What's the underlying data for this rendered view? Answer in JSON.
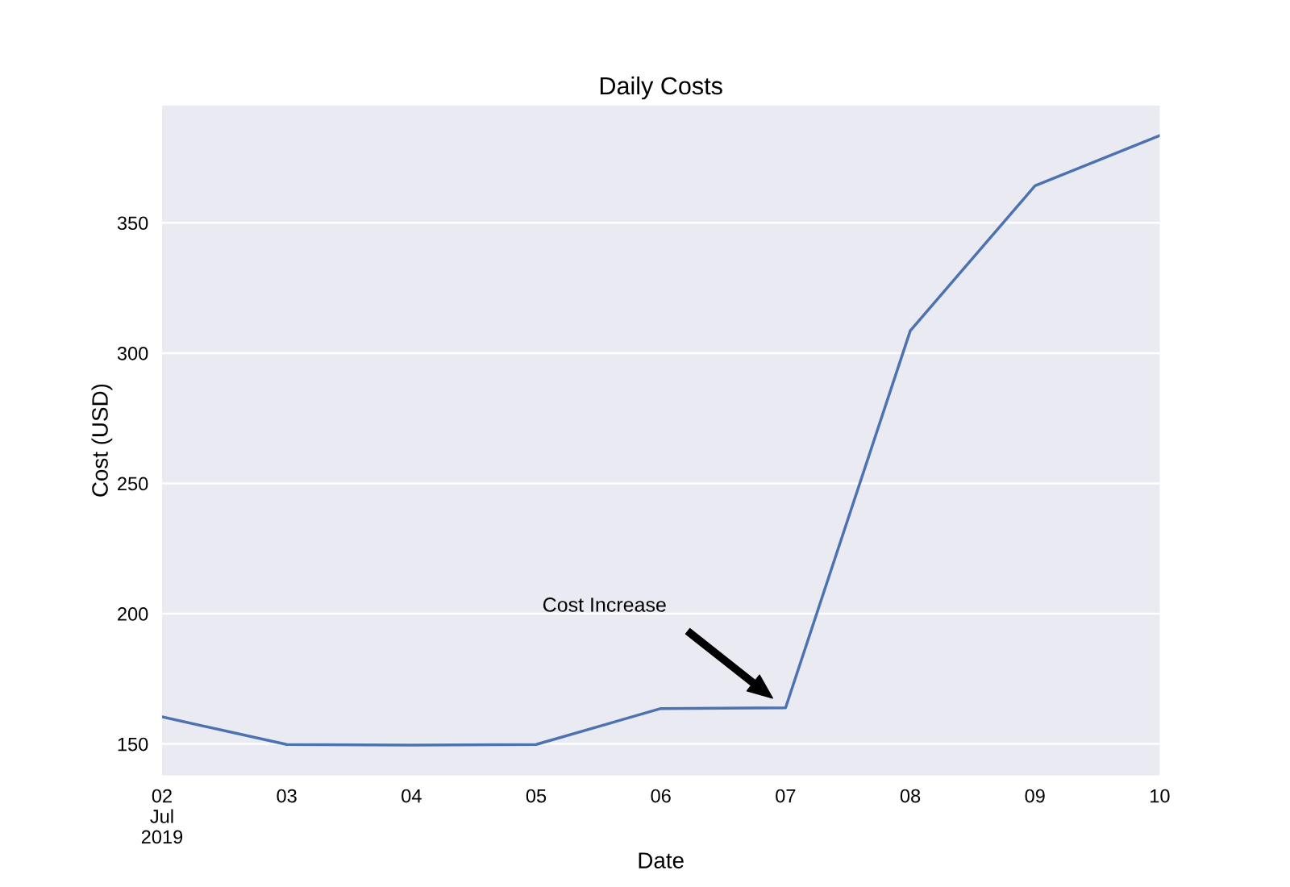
{
  "chart_data": {
    "type": "line",
    "title": "Daily Costs",
    "xlabel": "Date",
    "ylabel": "Cost (USD)",
    "x": [
      "2019-07-02",
      "2019-07-03",
      "2019-07-04",
      "2019-07-05",
      "2019-07-06",
      "2019-07-07",
      "2019-07-08",
      "2019-07-09",
      "2019-07-10"
    ],
    "series": [
      {
        "color": "#4c72b0",
        "values": [
          160.4,
          149.8,
          149.6,
          149.8,
          163.6,
          163.9,
          308.6,
          364.2,
          383.5
        ]
      }
    ],
    "xlim": [
      "2019-07-02",
      "2019-07-10"
    ],
    "xticks": [
      {
        "value": "2019-07-02",
        "label": "02\nJul\n2019"
      },
      {
        "value": "2019-07-03",
        "label": "03"
      },
      {
        "value": "2019-07-04",
        "label": "04"
      },
      {
        "value": "2019-07-05",
        "label": "05"
      },
      {
        "value": "2019-07-06",
        "label": "06"
      },
      {
        "value": "2019-07-07",
        "label": "07"
      },
      {
        "value": "2019-07-08",
        "label": "08"
      },
      {
        "value": "2019-07-09",
        "label": "09"
      },
      {
        "value": "2019-07-10",
        "label": "10"
      }
    ],
    "ylim": [
      138,
      395
    ],
    "yticks": [
      150,
      200,
      250,
      300,
      350
    ],
    "annotations": [
      "Cost Increase"
    ],
    "grid": "y",
    "marker": "none",
    "line_style": "solid"
  }
}
